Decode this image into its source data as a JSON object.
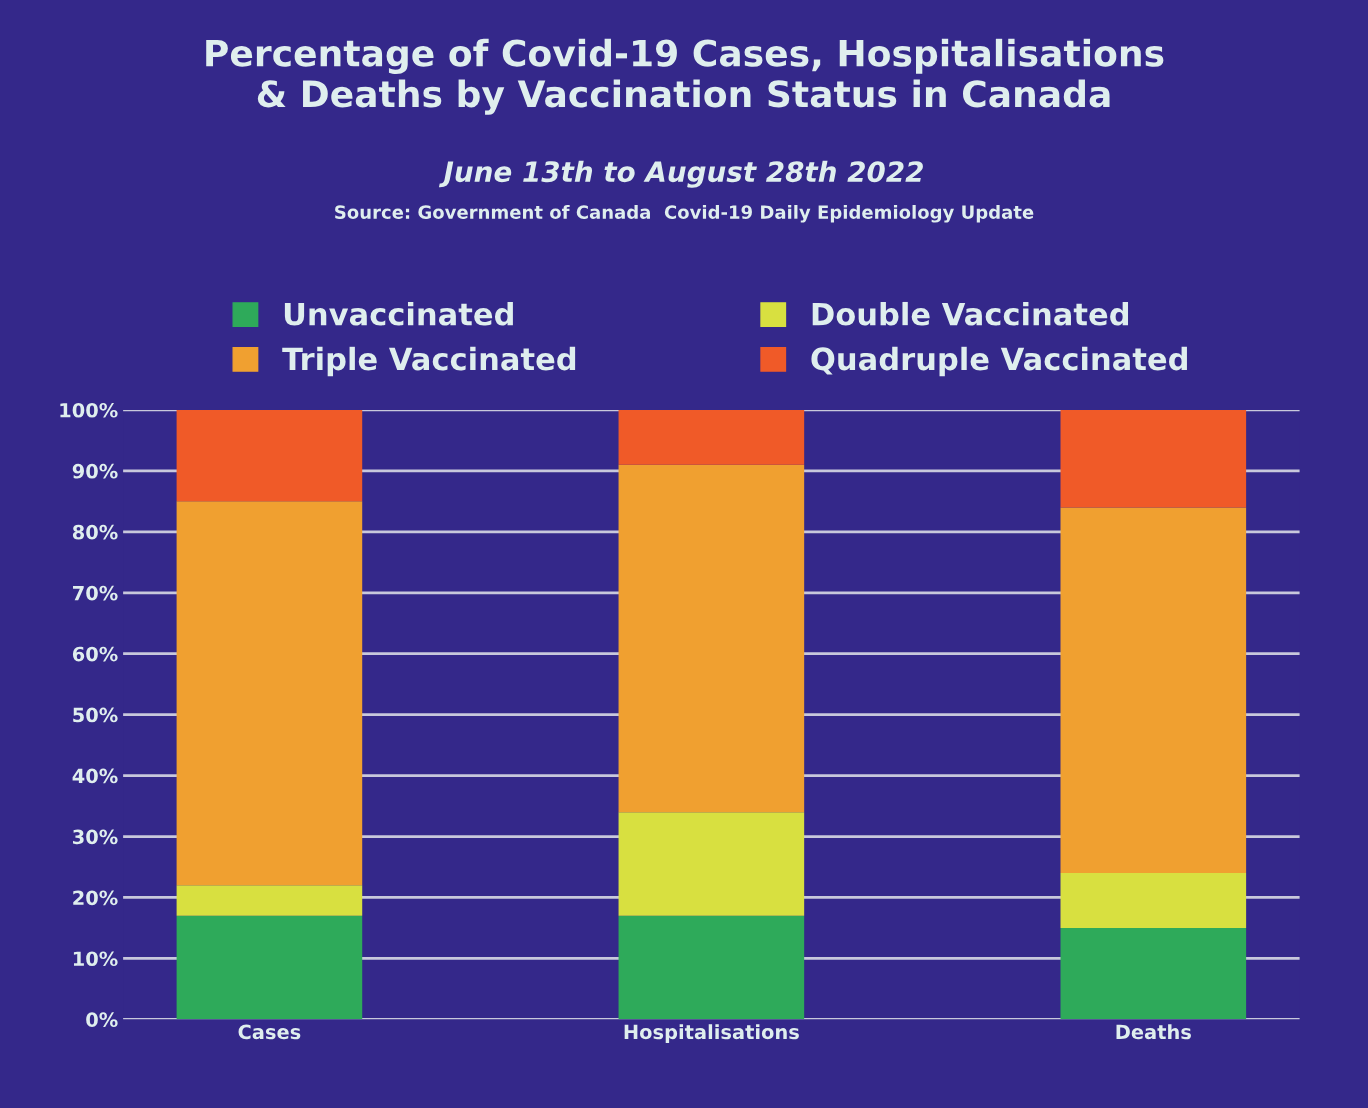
{
  "chart_data": {
    "type": "bar",
    "stacked": true,
    "title": "Percentage of Covid-19 Cases, Hospitalisations\n& Deaths by Vaccination Status in Canada",
    "subtitle": "June 13th to August 28th 2022",
    "annotations": [
      "Source: Government of Canada  Covid-19 Daily Epidemiology Update"
    ],
    "categories": [
      "Cases",
      "Hospitalisations",
      "Deaths"
    ],
    "series": [
      {
        "name": "Unvaccinated",
        "color": "#2eaa5a",
        "values": [
          17,
          17,
          15
        ]
      },
      {
        "name": "Double Vaccinated",
        "color": "#d8e040",
        "values": [
          5,
          17,
          9
        ]
      },
      {
        "name": "Triple Vaccinated",
        "color": "#f0a030",
        "values": [
          63,
          57,
          60
        ]
      },
      {
        "name": "Quadruple Vaccinated",
        "color": "#f05a28",
        "values": [
          15,
          9,
          16
        ]
      }
    ],
    "ylim": [
      0,
      100
    ],
    "yticks": [
      {
        "value": 0,
        "label": "0%"
      },
      {
        "value": 10,
        "label": "10%"
      },
      {
        "value": 20,
        "label": "20%"
      },
      {
        "value": 30,
        "label": "30%"
      },
      {
        "value": 40,
        "label": "40%"
      },
      {
        "value": 50,
        "label": "50%"
      },
      {
        "value": 60,
        "label": "60%"
      },
      {
        "value": 70,
        "label": "70%"
      },
      {
        "value": 80,
        "label": "80%"
      },
      {
        "value": 90,
        "label": "90%"
      },
      {
        "value": 100,
        "label": "100%"
      }
    ],
    "grid": "y",
    "legend": "top"
  }
}
